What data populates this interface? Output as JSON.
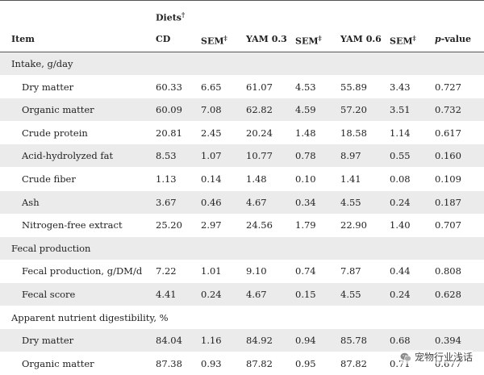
{
  "header": {
    "diets_label": "Diets",
    "diets_mark": "†",
    "columns": [
      {
        "label": "Item",
        "mark": ""
      },
      {
        "label": "CD",
        "mark": ""
      },
      {
        "label": "SEM",
        "mark": "‡"
      },
      {
        "label": "YAM 0.3",
        "mark": ""
      },
      {
        "label": "SEM",
        "mark": "‡"
      },
      {
        "label": "YAM 0.6",
        "mark": ""
      },
      {
        "label": "SEM",
        "mark": "‡"
      },
      {
        "label": "p-value",
        "mark": ""
      }
    ]
  },
  "rows": [
    {
      "type": "section",
      "label": "Intake, g/day"
    },
    {
      "type": "item",
      "label": "Dry matter",
      "values": [
        "60.33",
        "6.65",
        "61.07",
        "4.53",
        "55.89",
        "3.43",
        "0.727"
      ]
    },
    {
      "type": "item",
      "label": "Organic matter",
      "values": [
        "60.09",
        "7.08",
        "62.82",
        "4.59",
        "57.20",
        "3.51",
        "0.732"
      ]
    },
    {
      "type": "item",
      "label": "Crude protein",
      "values": [
        "20.81",
        "2.45",
        "20.24",
        "1.48",
        "18.58",
        "1.14",
        "0.617"
      ]
    },
    {
      "type": "item",
      "label": "Acid-hydrolyzed fat",
      "values": [
        "8.53",
        "1.07",
        "10.77",
        "0.78",
        "8.97",
        "0.55",
        "0.160"
      ]
    },
    {
      "type": "item",
      "label": "Crude fiber",
      "values": [
        "1.13",
        "0.14",
        "1.48",
        "0.10",
        "1.41",
        "0.08",
        "0.109"
      ]
    },
    {
      "type": "item",
      "label": "Ash",
      "values": [
        "3.67",
        "0.46",
        "4.67",
        "0.34",
        "4.55",
        "0.24",
        "0.187"
      ]
    },
    {
      "type": "item",
      "label": "Nitrogen-free extract",
      "values": [
        "25.20",
        "2.97",
        "24.56",
        "1.79",
        "22.90",
        "1.40",
        "0.707"
      ]
    },
    {
      "type": "section",
      "label": "Fecal production"
    },
    {
      "type": "item",
      "label": "Fecal production, g/DM/d",
      "values": [
        "7.22",
        "1.01",
        "9.10",
        "0.74",
        "7.87",
        "0.44",
        "0.808"
      ]
    },
    {
      "type": "item",
      "label": "Fecal score",
      "values": [
        "4.41",
        "0.24",
        "4.67",
        "0.15",
        "4.55",
        "0.24",
        "0.628"
      ]
    },
    {
      "type": "section",
      "label": "Apparent nutrient digestibility, %"
    },
    {
      "type": "item",
      "label": "Dry matter",
      "values": [
        "84.04",
        "1.16",
        "84.92",
        "0.94",
        "85.78",
        "0.68",
        "0.394"
      ]
    },
    {
      "type": "item",
      "label": "Organic matter",
      "values": [
        "87.38",
        "0.93",
        "87.82",
        "0.95",
        "87.82",
        "0.71",
        "0.677"
      ]
    }
  ],
  "watermark": {
    "text": "宠物行业浅话",
    "icon": "wechat-icon"
  }
}
